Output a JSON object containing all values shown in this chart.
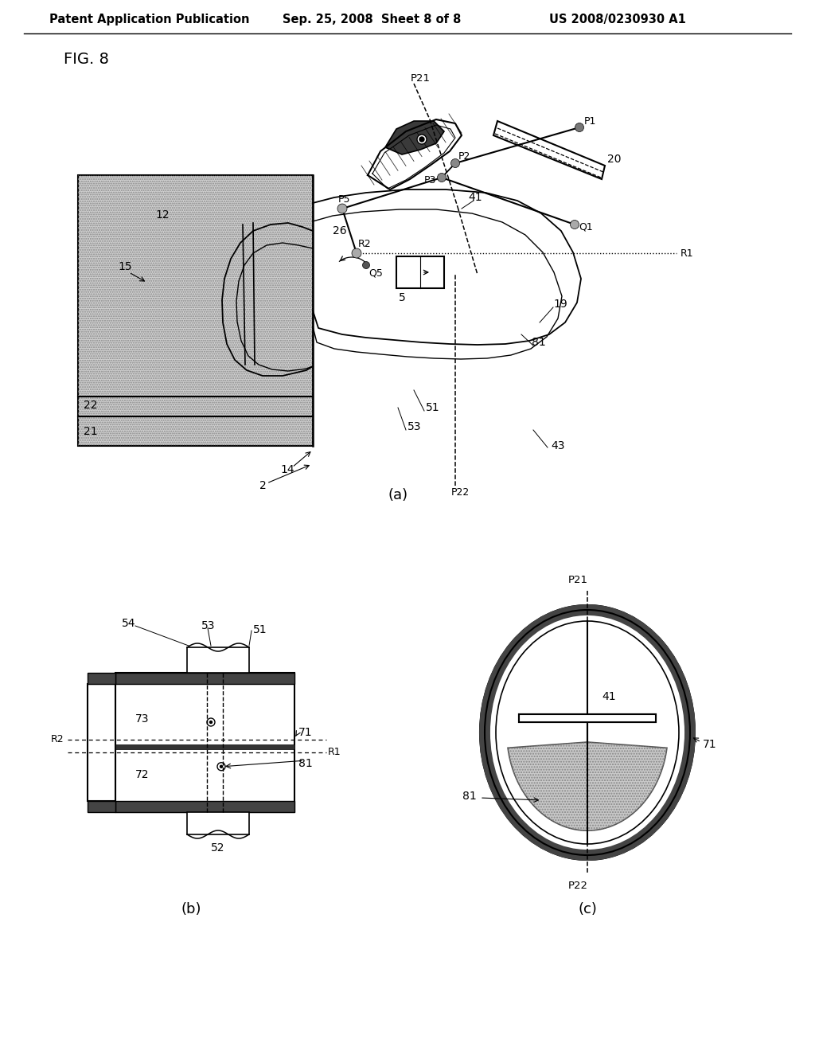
{
  "bg_color": "#ffffff",
  "header_left": "Patent Application Publication",
  "header_center": "Sep. 25, 2008  Sheet 8 of 8",
  "header_right": "US 2008/0230930 A1",
  "fig_label": "FIG. 8",
  "subfig_a_label": "(a)",
  "subfig_b_label": "(b)",
  "subfig_c_label": "(c)"
}
